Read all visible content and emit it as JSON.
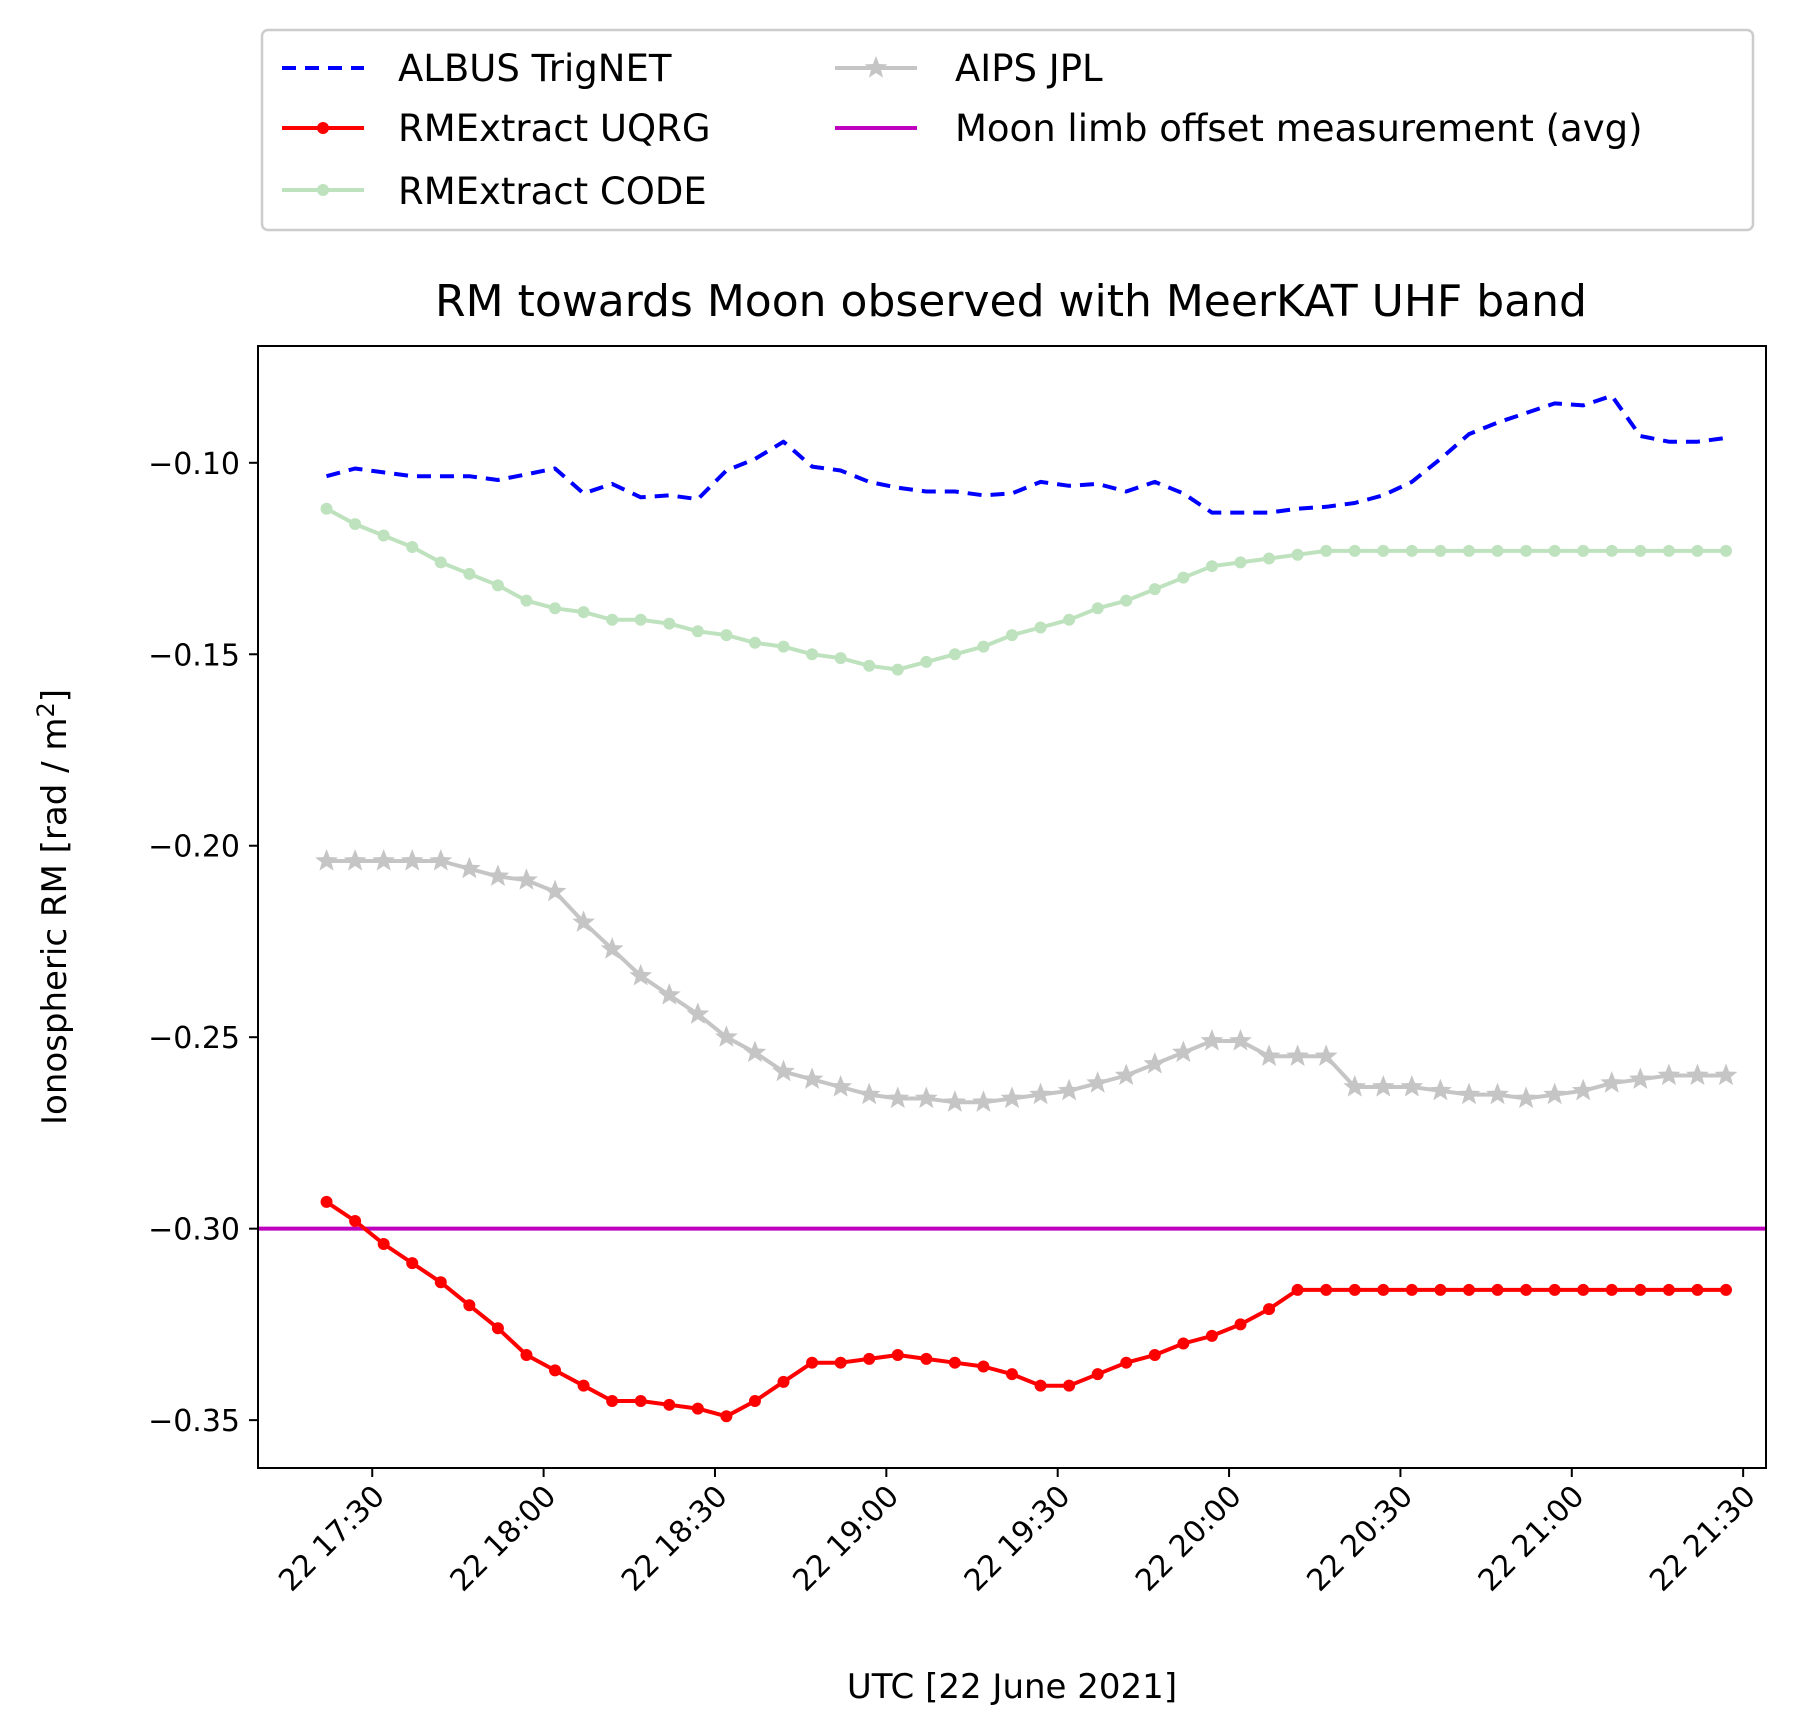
{
  "chart_data": {
    "type": "line",
    "title": "RM towards Moon observed with MeerKAT UHF band",
    "xlabel": "UTC [22 June 2021]",
    "ylabel": "Ionospheric RM [rad / m",
    "ylabel_sup": "2",
    "ylabel_close": "]",
    "xlim": [
      "2021-06-22 17:10",
      "2021-06-22 21:34"
    ],
    "ylim": [
      -0.3625,
      -0.0695
    ],
    "x_ticks": [
      {
        "t": "2021-06-22 17:30",
        "label": "22 17:30"
      },
      {
        "t": "2021-06-22 18:00",
        "label": "22 18:00"
      },
      {
        "t": "2021-06-22 18:30",
        "label": "22 18:30"
      },
      {
        "t": "2021-06-22 19:00",
        "label": "22 19:00"
      },
      {
        "t": "2021-06-22 19:30",
        "label": "22 19:30"
      },
      {
        "t": "2021-06-22 20:00",
        "label": "22 20:00"
      },
      {
        "t": "2021-06-22 20:30",
        "label": "22 20:30"
      },
      {
        "t": "2021-06-22 21:00",
        "label": "22 21:00"
      },
      {
        "t": "2021-06-22 21:30",
        "label": "22 21:30"
      }
    ],
    "y_ticks": [
      {
        "v": -0.1,
        "label": "−0.10"
      },
      {
        "v": -0.15,
        "label": "−0.15"
      },
      {
        "v": -0.2,
        "label": "−0.20"
      },
      {
        "v": -0.25,
        "label": "−0.25"
      },
      {
        "v": -0.3,
        "label": "−0.30"
      },
      {
        "v": -0.35,
        "label": "−0.35"
      }
    ],
    "grid": false,
    "legend_placement": "above plot, two columns",
    "series": [
      {
        "name": "ALBUS TrigNET",
        "color": "#0000ff",
        "style": "dashed",
        "marker": "none",
        "x": [
          "2021-06-22 17:22",
          "2021-06-22 17:27",
          "2021-06-22 17:32",
          "2021-06-22 17:37",
          "2021-06-22 17:42",
          "2021-06-22 17:47",
          "2021-06-22 17:52",
          "2021-06-22 17:57",
          "2021-06-22 18:02",
          "2021-06-22 18:07",
          "2021-06-22 18:12",
          "2021-06-22 18:17",
          "2021-06-22 18:22",
          "2021-06-22 18:27",
          "2021-06-22 18:32",
          "2021-06-22 18:37",
          "2021-06-22 18:42",
          "2021-06-22 18:47",
          "2021-06-22 18:52",
          "2021-06-22 18:57",
          "2021-06-22 19:02",
          "2021-06-22 19:07",
          "2021-06-22 19:12",
          "2021-06-22 19:17",
          "2021-06-22 19:22",
          "2021-06-22 19:27",
          "2021-06-22 19:32",
          "2021-06-22 19:37",
          "2021-06-22 19:42",
          "2021-06-22 19:47",
          "2021-06-22 19:52",
          "2021-06-22 19:57",
          "2021-06-22 20:02",
          "2021-06-22 20:07",
          "2021-06-22 20:12",
          "2021-06-22 20:17",
          "2021-06-22 20:22",
          "2021-06-22 20:27",
          "2021-06-22 20:32",
          "2021-06-22 20:37",
          "2021-06-22 20:42",
          "2021-06-22 20:47",
          "2021-06-22 20:52",
          "2021-06-22 20:57",
          "2021-06-22 21:02",
          "2021-06-22 21:07",
          "2021-06-22 21:12",
          "2021-06-22 21:17",
          "2021-06-22 21:22",
          "2021-06-22 21:27"
        ],
        "y": [
          -0.1035,
          -0.1015,
          -0.1025,
          -0.1035,
          -0.1035,
          -0.1035,
          -0.1045,
          -0.103,
          -0.1015,
          -0.108,
          -0.1055,
          -0.109,
          -0.1085,
          -0.1095,
          -0.102,
          -0.099,
          -0.0945,
          -0.101,
          -0.102,
          -0.105,
          -0.1065,
          -0.1075,
          -0.1075,
          -0.1085,
          -0.108,
          -0.105,
          -0.106,
          -0.1055,
          -0.1075,
          -0.105,
          -0.108,
          -0.113,
          -0.113,
          -0.113,
          -0.112,
          -0.1115,
          -0.1105,
          -0.1085,
          -0.105,
          -0.099,
          -0.0925,
          -0.0895,
          -0.087,
          -0.0845,
          -0.085,
          -0.0825,
          -0.093,
          -0.0945,
          -0.0945,
          -0.0935
        ]
      },
      {
        "name": "RMExtract UQRG",
        "color": "#ff0000",
        "style": "solid",
        "marker": "dot",
        "x": [
          "2021-06-22 17:22",
          "2021-06-22 17:27",
          "2021-06-22 17:32",
          "2021-06-22 17:37",
          "2021-06-22 17:42",
          "2021-06-22 17:47",
          "2021-06-22 17:52",
          "2021-06-22 17:57",
          "2021-06-22 18:02",
          "2021-06-22 18:07",
          "2021-06-22 18:12",
          "2021-06-22 18:17",
          "2021-06-22 18:22",
          "2021-06-22 18:27",
          "2021-06-22 18:32",
          "2021-06-22 18:37",
          "2021-06-22 18:42",
          "2021-06-22 18:47",
          "2021-06-22 18:52",
          "2021-06-22 18:57",
          "2021-06-22 19:02",
          "2021-06-22 19:07",
          "2021-06-22 19:12",
          "2021-06-22 19:17",
          "2021-06-22 19:22",
          "2021-06-22 19:27",
          "2021-06-22 19:32",
          "2021-06-22 19:37",
          "2021-06-22 19:42",
          "2021-06-22 19:47",
          "2021-06-22 19:52",
          "2021-06-22 19:57",
          "2021-06-22 20:02",
          "2021-06-22 20:07",
          "2021-06-22 20:12",
          "2021-06-22 20:17",
          "2021-06-22 20:22",
          "2021-06-22 20:27",
          "2021-06-22 20:32",
          "2021-06-22 20:37",
          "2021-06-22 20:42",
          "2021-06-22 20:47",
          "2021-06-22 20:52",
          "2021-06-22 20:57",
          "2021-06-22 21:02",
          "2021-06-22 21:07",
          "2021-06-22 21:12",
          "2021-06-22 21:17",
          "2021-06-22 21:22",
          "2021-06-22 21:27"
        ],
        "y": [
          -0.293,
          -0.298,
          -0.304,
          -0.309,
          -0.314,
          -0.32,
          -0.326,
          -0.333,
          -0.337,
          -0.341,
          -0.345,
          -0.345,
          -0.346,
          -0.347,
          -0.349,
          -0.345,
          -0.34,
          -0.335,
          -0.335,
          -0.334,
          -0.333,
          -0.334,
          -0.335,
          -0.336,
          -0.338,
          -0.341,
          -0.341,
          -0.338,
          -0.335,
          -0.333,
          -0.33,
          -0.328,
          -0.325,
          -0.321,
          -0.316,
          -0.316,
          -0.316,
          -0.316,
          -0.316,
          -0.316,
          -0.316,
          -0.316,
          -0.316,
          -0.316,
          -0.316,
          -0.316,
          -0.316,
          -0.316,
          -0.316,
          -0.316
        ]
      },
      {
        "name": "RMExtract CODE",
        "color": "#2ca02c",
        "opacity": 0.3,
        "style": "solid",
        "marker": "dot",
        "x": [
          "2021-06-22 17:22",
          "2021-06-22 17:27",
          "2021-06-22 17:32",
          "2021-06-22 17:37",
          "2021-06-22 17:42",
          "2021-06-22 17:47",
          "2021-06-22 17:52",
          "2021-06-22 17:57",
          "2021-06-22 18:02",
          "2021-06-22 18:07",
          "2021-06-22 18:12",
          "2021-06-22 18:17",
          "2021-06-22 18:22",
          "2021-06-22 18:27",
          "2021-06-22 18:32",
          "2021-06-22 18:37",
          "2021-06-22 18:42",
          "2021-06-22 18:47",
          "2021-06-22 18:52",
          "2021-06-22 18:57",
          "2021-06-22 19:02",
          "2021-06-22 19:07",
          "2021-06-22 19:12",
          "2021-06-22 19:17",
          "2021-06-22 19:22",
          "2021-06-22 19:27",
          "2021-06-22 19:32",
          "2021-06-22 19:37",
          "2021-06-22 19:42",
          "2021-06-22 19:47",
          "2021-06-22 19:52",
          "2021-06-22 19:57",
          "2021-06-22 20:02",
          "2021-06-22 20:07",
          "2021-06-22 20:12",
          "2021-06-22 20:17",
          "2021-06-22 20:22",
          "2021-06-22 20:27",
          "2021-06-22 20:32",
          "2021-06-22 20:37",
          "2021-06-22 20:42",
          "2021-06-22 20:47",
          "2021-06-22 20:52",
          "2021-06-22 20:57",
          "2021-06-22 21:02",
          "2021-06-22 21:07",
          "2021-06-22 21:12",
          "2021-06-22 21:17",
          "2021-06-22 21:22",
          "2021-06-22 21:27"
        ],
        "y": [
          -0.112,
          -0.116,
          -0.119,
          -0.122,
          -0.126,
          -0.129,
          -0.132,
          -0.136,
          -0.138,
          -0.139,
          -0.141,
          -0.141,
          -0.142,
          -0.144,
          -0.145,
          -0.147,
          -0.148,
          -0.15,
          -0.151,
          -0.153,
          -0.154,
          -0.152,
          -0.15,
          -0.148,
          -0.145,
          -0.143,
          -0.141,
          -0.138,
          -0.136,
          -0.133,
          -0.13,
          -0.127,
          -0.126,
          -0.125,
          -0.124,
          -0.123,
          -0.123,
          -0.123,
          -0.123,
          -0.123,
          -0.123,
          -0.123,
          -0.123,
          -0.123,
          -0.123,
          -0.123,
          -0.123,
          -0.123,
          -0.123,
          -0.123
        ]
      },
      {
        "name": "AIPS JPL",
        "color": "#808080",
        "opacity": 0.45,
        "style": "solid",
        "marker": "star",
        "x": [
          "2021-06-22 17:22",
          "2021-06-22 17:27",
          "2021-06-22 17:32",
          "2021-06-22 17:37",
          "2021-06-22 17:42",
          "2021-06-22 17:47",
          "2021-06-22 17:52",
          "2021-06-22 17:57",
          "2021-06-22 18:02",
          "2021-06-22 18:07",
          "2021-06-22 18:12",
          "2021-06-22 18:17",
          "2021-06-22 18:22",
          "2021-06-22 18:27",
          "2021-06-22 18:32",
          "2021-06-22 18:37",
          "2021-06-22 18:42",
          "2021-06-22 18:47",
          "2021-06-22 18:52",
          "2021-06-22 18:57",
          "2021-06-22 19:02",
          "2021-06-22 19:07",
          "2021-06-22 19:12",
          "2021-06-22 19:17",
          "2021-06-22 19:22",
          "2021-06-22 19:27",
          "2021-06-22 19:32",
          "2021-06-22 19:37",
          "2021-06-22 19:42",
          "2021-06-22 19:47",
          "2021-06-22 19:52",
          "2021-06-22 19:57",
          "2021-06-22 20:02",
          "2021-06-22 20:07",
          "2021-06-22 20:12",
          "2021-06-22 20:17",
          "2021-06-22 20:22",
          "2021-06-22 20:27",
          "2021-06-22 20:32",
          "2021-06-22 20:37",
          "2021-06-22 20:42",
          "2021-06-22 20:47",
          "2021-06-22 20:52",
          "2021-06-22 20:57",
          "2021-06-22 21:02",
          "2021-06-22 21:07",
          "2021-06-22 21:12",
          "2021-06-22 21:17",
          "2021-06-22 21:22",
          "2021-06-22 21:27"
        ],
        "y": [
          -0.204,
          -0.204,
          -0.204,
          -0.204,
          -0.204,
          -0.206,
          -0.208,
          -0.209,
          -0.212,
          -0.22,
          -0.227,
          -0.234,
          -0.239,
          -0.244,
          -0.25,
          -0.254,
          -0.259,
          -0.261,
          -0.263,
          -0.265,
          -0.266,
          -0.266,
          -0.267,
          -0.267,
          -0.266,
          -0.265,
          -0.264,
          -0.262,
          -0.26,
          -0.257,
          -0.254,
          -0.251,
          -0.251,
          -0.255,
          -0.255,
          -0.255,
          -0.263,
          -0.263,
          -0.263,
          -0.264,
          -0.265,
          -0.265,
          -0.266,
          -0.265,
          -0.264,
          -0.262,
          -0.261,
          -0.26,
          -0.26,
          -0.26
        ]
      },
      {
        "name": "Moon limb offset measurement (avg)",
        "color": "#bf00bf",
        "style": "solid",
        "marker": "none",
        "hline": -0.3
      }
    ]
  }
}
